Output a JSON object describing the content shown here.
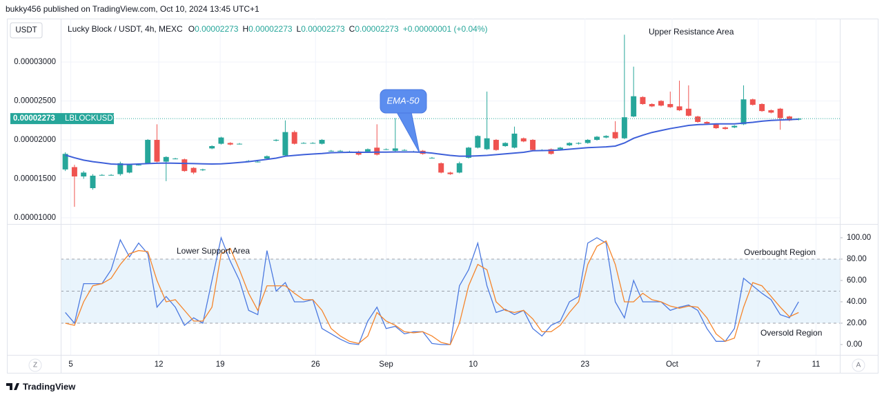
{
  "header": "bukky456 published on TradingView.com, Oct 10, 2024 13:45 UTC+1",
  "footer": "TradingView",
  "chart_data": [
    {
      "type": "candlestick",
      "title": "Lucky Block / USDT, 4h, MEXC",
      "currency": "USDT",
      "symbol": "LBLOCKUSDT",
      "legend_values": [
        {
          "label": "O",
          "value": "0.00002273"
        },
        {
          "label": "H",
          "value": "0.00002273"
        },
        {
          "label": "L",
          "value": "0.00002273"
        },
        {
          "label": "C",
          "value": "0.00002273"
        }
      ],
      "change": "+0.00000001 (+0.04%)",
      "last_price": 2.273e-05,
      "up_color": "#26a69a",
      "down_color": "#ef5350",
      "categories": [
        null,
        null,
        null,
        null,
        null,
        null,
        null,
        null,
        null,
        null,
        null,
        null,
        null,
        null,
        null,
        null,
        null,
        null,
        null,
        null,
        null,
        null,
        null,
        null,
        null,
        null,
        null,
        null,
        null,
        null,
        null,
        null,
        null,
        null,
        null,
        null,
        null,
        null,
        null,
        null,
        null,
        null,
        null,
        null,
        null,
        null,
        null,
        null,
        null,
        null,
        null,
        null,
        null,
        null,
        null,
        null,
        null,
        null,
        null,
        null,
        null,
        null,
        null,
        null,
        null,
        null,
        null,
        null,
        null,
        null,
        null,
        null,
        null,
        null,
        null,
        null,
        null,
        null,
        null,
        null,
        null
      ],
      "open": [
        1.62e-05,
        1.65e-05,
        1.53e-05,
        1.38e-05,
        1.55e-05,
        1.55e-05,
        1.56e-05,
        1.58e-05,
        1.68e-05,
        1.7e-05,
        2e-05,
        1.72e-05,
        1.76e-05,
        1.75e-05,
        1.64e-05,
        1.61e-05,
        1.89e-05,
        1.95e-05,
        1.96e-05,
        1.95e-05,
        1.73e-05,
        1.72e-05,
        1.76e-05,
        1.99e-05,
        1.8e-05,
        2.1e-05,
        1.96e-05,
        1.96e-05,
        1.95e-05,
        1.86e-05,
        1.86e-05,
        1.85e-05,
        1.85e-05,
        1.85e-05,
        1.9e-05,
        1.88e-05,
        1.86e-05,
        1.87e-05,
        1.85e-05,
        1.86e-05,
        1.77e-05,
        1.7e-05,
        1.58e-05,
        1.58e-05,
        1.77e-05,
        1.9e-05,
        1.88e-05,
        2e-05,
        1.92e-05,
        1.9e-05,
        2.02e-05,
        2e-05,
        1.87e-05,
        1.88e-05,
        1.88e-05,
        1.93e-05,
        1.95e-05,
        1.96e-05,
        2e-05,
        2.03e-05,
        2.1e-05,
        2.02e-05,
        2.3e-05,
        2.55e-05,
        2.46e-05,
        2.5e-05,
        2.46e-05,
        2.43e-05,
        2.4e-05,
        2.3e-05,
        2.23e-05,
        2.2e-05,
        2.16e-05,
        2.16e-05,
        2.2e-05,
        2.52e-05,
        2.46e-05,
        2.38e-05,
        2.4e-05,
        2.3e-05,
        2.26e-05
      ],
      "high": [
        1.84e-05,
        1.68e-05,
        1.6e-05,
        1.56e-05,
        1.56e-05,
        1.56e-05,
        1.72e-05,
        1.69e-05,
        1.69e-05,
        2.01e-05,
        2.2e-05,
        1.79e-05,
        1.77e-05,
        1.76e-05,
        1.65e-05,
        1.63e-05,
        1.93e-05,
        2.04e-05,
        1.97e-05,
        1.96e-05,
        1.74e-05,
        1.73e-05,
        1.8e-05,
        2.01e-05,
        2.25e-05,
        2.12e-05,
        1.97e-05,
        1.97e-05,
        2.01e-05,
        1.87e-05,
        1.87e-05,
        1.86e-05,
        1.86e-05,
        1.89e-05,
        2.2e-05,
        1.89e-05,
        2.28e-05,
        1.88e-05,
        1.86e-05,
        1.87e-05,
        1.78e-05,
        1.71e-05,
        1.59e-05,
        1.72e-05,
        1.91e-05,
        2.06e-05,
        2.62e-05,
        2.01e-05,
        1.97e-05,
        2.17e-05,
        2.03e-05,
        2.01e-05,
        1.88e-05,
        1.89e-05,
        1.91e-05,
        1.97e-05,
        1.97e-05,
        2.01e-05,
        2.05e-05,
        2.06e-05,
        2.24e-05,
        3.35e-05,
        2.94e-05,
        2.56e-05,
        2.47e-05,
        2.51e-05,
        2.62e-05,
        2.76e-05,
        2.7e-05,
        2.31e-05,
        2.24e-05,
        2.21e-05,
        2.17e-05,
        2.19e-05,
        2.7e-05,
        2.53e-05,
        2.47e-05,
        2.39e-05,
        2.41e-05,
        2.31e-05,
        2.28e-05
      ],
      "low": [
        1.6e-05,
        1.14e-05,
        1.5e-05,
        1.36e-05,
        1.54e-05,
        1.54e-05,
        1.54e-05,
        1.57e-05,
        1.67e-05,
        1.69e-05,
        1.71e-05,
        1.47e-05,
        1.75e-05,
        1.59e-05,
        1.56e-05,
        1.6e-05,
        1.88e-05,
        1.94e-05,
        1.93e-05,
        1.94e-05,
        1.72e-05,
        1.71e-05,
        1.75e-05,
        1.98e-05,
        1.79e-05,
        1.94e-05,
        1.95e-05,
        1.95e-05,
        1.94e-05,
        1.85e-05,
        1.85e-05,
        1.84e-05,
        1.8e-05,
        1.84e-05,
        1.8e-05,
        1.87e-05,
        1.85e-05,
        1.86e-05,
        1.84e-05,
        1.81e-05,
        1.76e-05,
        1.57e-05,
        1.55e-05,
        1.57e-05,
        1.76e-05,
        1.89e-05,
        1.87e-05,
        1.86e-05,
        1.91e-05,
        1.89e-05,
        1.97e-05,
        1.86e-05,
        1.86e-05,
        1.81e-05,
        1.87e-05,
        1.92e-05,
        1.94e-05,
        1.95e-05,
        1.99e-05,
        2.02e-05,
        2.01e-05,
        2.01e-05,
        2.29e-05,
        2.45e-05,
        2.42e-05,
        2.43e-05,
        2.41e-05,
        2.37e-05,
        2.3e-05,
        2.22e-05,
        2.2e-05,
        2.14e-05,
        2.13e-05,
        2.15e-05,
        2.19e-05,
        2.44e-05,
        2.36e-05,
        2.34e-05,
        2.13e-05,
        2.24e-05,
        2.25e-05
      ],
      "close": [
        1.82e-05,
        1.53e-05,
        1.58e-05,
        1.54e-05,
        1.55e-05,
        1.55e-05,
        1.7e-05,
        1.68e-05,
        1.68e-05,
        2e-05,
        1.72e-05,
        1.78e-05,
        1.76e-05,
        1.6e-05,
        1.58e-05,
        1.62e-05,
        1.92e-05,
        2.03e-05,
        1.94e-05,
        1.95e-05,
        1.73e-05,
        1.72e-05,
        1.79e-05,
        2e-05,
        2.1e-05,
        1.95e-05,
        1.96e-05,
        1.96e-05,
        2e-05,
        1.86e-05,
        1.86e-05,
        1.85e-05,
        1.81e-05,
        1.88e-05,
        1.81e-05,
        1.88e-05,
        1.89e-05,
        1.87e-05,
        1.85e-05,
        1.82e-05,
        1.77e-05,
        1.58e-05,
        1.56e-05,
        1.7e-05,
        1.9e-05,
        2.05e-05,
        2.02e-05,
        1.87e-05,
        1.96e-05,
        2.08e-05,
        1.98e-05,
        1.87e-05,
        1.87e-05,
        1.82e-05,
        1.9e-05,
        1.96e-05,
        1.96e-05,
        2e-05,
        2.04e-05,
        2.05e-05,
        2.02e-05,
        2.29e-05,
        2.56e-05,
        2.46e-05,
        2.43e-05,
        2.44e-05,
        2.42e-05,
        2.38e-05,
        2.31e-05,
        2.23e-05,
        2.21e-05,
        2.15e-05,
        2.14e-05,
        2.18e-05,
        2.52e-05,
        2.45e-05,
        2.37e-05,
        2.35e-05,
        2.28e-05,
        2.25e-05,
        2.273e-05
      ],
      "overlays": [
        {
          "name": "EMA-50",
          "color": "#3d5fd9",
          "values": [
            1.805e-05,
            1.77e-05,
            1.74e-05,
            1.72e-05,
            1.705e-05,
            1.69e-05,
            1.685e-05,
            1.685e-05,
            1.69e-05,
            1.695e-05,
            1.7e-05,
            1.702e-05,
            1.7e-05,
            1.698e-05,
            1.695e-05,
            1.692e-05,
            1.69e-05,
            1.692e-05,
            1.7e-05,
            1.71e-05,
            1.72e-05,
            1.735e-05,
            1.75e-05,
            1.765e-05,
            1.79e-05,
            1.8e-05,
            1.81e-05,
            1.818e-05,
            1.825e-05,
            1.835e-05,
            1.838e-05,
            1.84e-05,
            1.84e-05,
            1.84e-05,
            1.842e-05,
            1.842e-05,
            1.845e-05,
            1.845e-05,
            1.845e-05,
            1.84e-05,
            1.83e-05,
            1.815e-05,
            1.8e-05,
            1.79e-05,
            1.79e-05,
            1.795e-05,
            1.8e-05,
            1.81e-05,
            1.82e-05,
            1.83e-05,
            1.84e-05,
            1.86e-05,
            1.862e-05,
            1.865e-05,
            1.87e-05,
            1.88e-05,
            1.89e-05,
            1.9e-05,
            1.905e-05,
            1.91e-05,
            1.92e-05,
            1.96e-05,
            2.02e-05,
            2.06e-05,
            2.095e-05,
            2.12e-05,
            2.145e-05,
            2.165e-05,
            2.185e-05,
            2.195e-05,
            2.2e-05,
            2.205e-05,
            2.205e-05,
            2.205e-05,
            2.215e-05,
            2.225e-05,
            2.24e-05,
            2.25e-05,
            2.255e-05,
            2.26e-05,
            2.265e-05
          ]
        }
      ],
      "ylim": [
        9.2e-06,
        3.557e-05
      ],
      "yticks": [
        {
          "value": 1e-05,
          "label": "0.00001000"
        },
        {
          "value": 1.5e-05,
          "label": "0.00001500"
        },
        {
          "value": 2e-05,
          "label": "0.00002000"
        },
        {
          "value": 2.5e-05,
          "label": "0.00002500"
        },
        {
          "value": 3e-05,
          "label": "0.00003000"
        }
      ],
      "xlim": [
        -0.5,
        84.5
      ],
      "xticks": [
        {
          "value": 0.6,
          "label": "5"
        },
        {
          "value": 10.2,
          "label": "12"
        },
        {
          "value": 16.9,
          "label": "19"
        },
        {
          "value": 27.3,
          "label": "26"
        },
        {
          "value": 35.0,
          "label": "Sep"
        },
        {
          "value": 44.5,
          "label": "10"
        },
        {
          "value": 56.7,
          "label": "23"
        },
        {
          "value": 66.2,
          "label": "Oct"
        },
        {
          "value": 75.6,
          "label": "7"
        },
        {
          "value": 81.9,
          "label": "11"
        }
      ],
      "grid": true,
      "annotations": [
        "Upper Resistance Area",
        "Lower Support Area"
      ]
    },
    {
      "type": "line",
      "series": [
        {
          "color": "#4a78e0",
          "values": [
            30,
            20,
            57,
            57,
            57,
            70,
            98,
            82,
            95,
            85,
            35,
            45,
            35,
            18,
            25,
            20,
            60,
            100,
            78,
            60,
            32,
            28,
            88,
            50,
            58,
            40,
            40,
            42,
            15,
            10,
            5,
            1,
            0,
            22,
            35,
            15,
            17,
            10,
            12,
            12,
            1,
            0,
            0,
            55,
            70,
            95,
            55,
            30,
            33,
            28,
            32,
            15,
            8,
            18,
            22,
            40,
            45,
            95,
            100,
            95,
            40,
            25,
            60,
            40,
            40,
            40,
            32,
            35,
            37,
            32,
            15,
            3,
            3,
            15,
            62,
            55,
            48,
            42,
            28,
            25,
            40
          ]
        },
        {
          "color": "#f5842a",
          "values": [
            20,
            18,
            40,
            55,
            57,
            62,
            75,
            85,
            88,
            87,
            60,
            40,
            42,
            32,
            22,
            22,
            35,
            85,
            90,
            70,
            48,
            32,
            55,
            55,
            55,
            48,
            42,
            42,
            32,
            15,
            8,
            3,
            1,
            8,
            30,
            22,
            18,
            12,
            11,
            12,
            8,
            2,
            0,
            20,
            55,
            75,
            70,
            40,
            32,
            30,
            32,
            24,
            12,
            12,
            18,
            30,
            40,
            75,
            92,
            97,
            75,
            40,
            40,
            48,
            42,
            40,
            36,
            34,
            36,
            35,
            25,
            10,
            3,
            6,
            35,
            58,
            55,
            45,
            35,
            26,
            30
          ]
        }
      ],
      "bands": {
        "lower": 20,
        "middle": 50,
        "upper": 80
      },
      "band_color": "#e3f1fb",
      "ylim": [
        -9.7,
        112.9
      ],
      "yticks": [
        {
          "value": 0,
          "label": "0.00"
        },
        {
          "value": 20,
          "label": "20.00"
        },
        {
          "value": 40,
          "label": "40.00"
        },
        {
          "value": 60,
          "label": "60.00"
        },
        {
          "value": 80,
          "label": "80.00"
        },
        {
          "value": 100,
          "label": "100.00"
        }
      ],
      "annotations": [
        "Overbought Region",
        "Oversold Region"
      ]
    }
  ]
}
